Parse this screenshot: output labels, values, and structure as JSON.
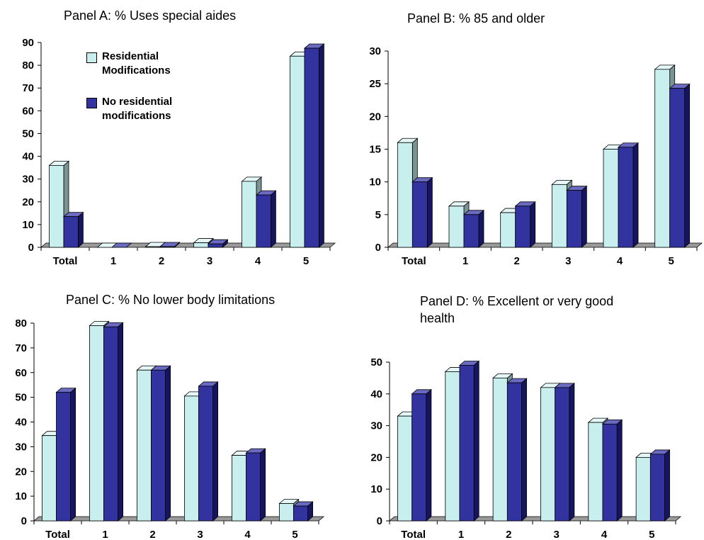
{
  "colors": {
    "residential_front": "#c8eeee",
    "residential_side": "#7a9393",
    "residential_top": "#e6f7f7",
    "none_front": "#3333a0",
    "none_side": "#151560",
    "none_top": "#6a6ac2",
    "floor": "#9a9a9a"
  },
  "legend": {
    "item1": "Residential Modifications",
    "item1_line1": "Residential",
    "item1_line2": "Modifications",
    "item2": "No residential modifications",
    "item2_line1": "No residential",
    "item2_line2": "modifications"
  },
  "chart_data": [
    {
      "type": "bar",
      "title": "Panel A: % Uses special aides",
      "categories": [
        "Total",
        "1",
        "2",
        "3",
        "4",
        "5"
      ],
      "series": [
        {
          "name": "Residential Modifications",
          "values": [
            36,
            0,
            0.3,
            2,
            29,
            84
          ]
        },
        {
          "name": "No residential modifications",
          "values": [
            13.5,
            0,
            0.3,
            1.5,
            23,
            87.5
          ]
        }
      ],
      "ylim": [
        0,
        90
      ],
      "yticks": [
        0,
        10,
        20,
        30,
        40,
        50,
        60,
        70,
        80,
        90
      ],
      "legend": "top-left"
    },
    {
      "type": "bar",
      "title": "Panel B: % 85 and older",
      "categories": [
        "Total",
        "1",
        "2",
        "3",
        "4",
        "5"
      ],
      "series": [
        {
          "name": "Residential Modifications",
          "values": [
            16,
            6.3,
            5.3,
            9.6,
            15,
            27.2
          ]
        },
        {
          "name": "No residential modifications",
          "values": [
            10,
            5,
            6.3,
            8.7,
            15.3,
            24.3
          ]
        }
      ],
      "ylim": [
        0,
        30
      ],
      "yticks": [
        0,
        5,
        10,
        15,
        20,
        25,
        30
      ]
    },
    {
      "type": "bar",
      "title": "Panel C: % No lower body limitations",
      "categories": [
        "Total",
        "1",
        "2",
        "3",
        "4",
        "5"
      ],
      "series": [
        {
          "name": "Residential Modifications",
          "values": [
            34.5,
            79,
            61,
            50.5,
            26.5,
            7
          ]
        },
        {
          "name": "No residential modifications",
          "values": [
            52,
            78.5,
            61,
            54.5,
            27.5,
            6
          ]
        }
      ],
      "ylim": [
        0,
        80
      ],
      "yticks": [
        0,
        10,
        20,
        30,
        40,
        50,
        60,
        70,
        80
      ]
    },
    {
      "type": "bar",
      "title": "Panel D: % Excellent or very good health",
      "title_line1": "Panel D: % Excellent or very good",
      "title_line2": "health",
      "categories": [
        "Total",
        "1",
        "2",
        "3",
        "4",
        "5"
      ],
      "series": [
        {
          "name": "Residential Modifications",
          "values": [
            33,
            47,
            45,
            42,
            31,
            20
          ]
        },
        {
          "name": "No residential modifications",
          "values": [
            40,
            49,
            43.5,
            42,
            30.5,
            21
          ]
        }
      ],
      "ylim": [
        0,
        50
      ],
      "yticks": [
        0,
        10,
        20,
        30,
        40,
        50
      ]
    }
  ]
}
